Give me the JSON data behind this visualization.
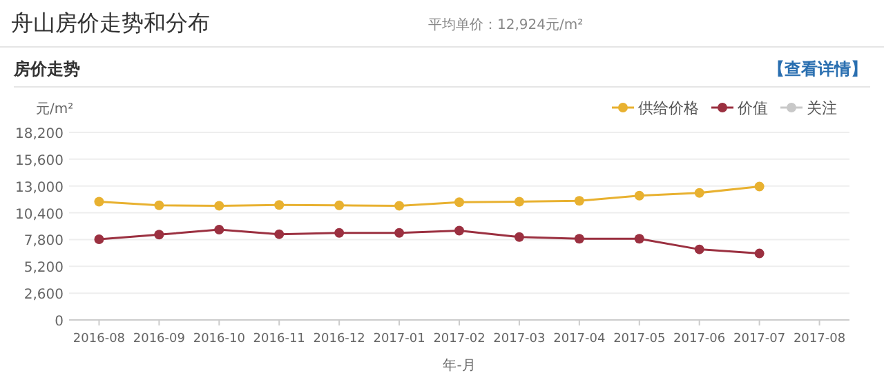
{
  "chart_data": {
    "type": "line",
    "title": "舟山房价走势和分布",
    "subtitle": "平均单价：12,924元/m²",
    "annotations": [
      "房价走势",
      "【查看详情】"
    ],
    "ylabel": "元/m²",
    "xlabel": "年-月",
    "categories": [
      "2016-08",
      "2016-09",
      "2016-10",
      "2016-11",
      "2016-12",
      "2017-01",
      "2017-02",
      "2017-03",
      "2017-04",
      "2017-05",
      "2017-06",
      "2017-07",
      "2017-08"
    ],
    "series": [
      {
        "name": "供给价格",
        "color": "#e8b130",
        "values": [
          11480,
          11120,
          11080,
          11160,
          11120,
          11080,
          11430,
          11480,
          11560,
          12060,
          12330,
          12950,
          null
        ]
      },
      {
        "name": "价值",
        "color": "#9b3040",
        "values": [
          7830,
          8280,
          8760,
          8320,
          8450,
          8450,
          8670,
          8050,
          7880,
          7880,
          6850,
          6450,
          null
        ]
      },
      {
        "name": "关注",
        "color": "#c8c8c8",
        "values": [
          null,
          null,
          null,
          null,
          null,
          null,
          null,
          null,
          null,
          null,
          null,
          null,
          null
        ]
      }
    ],
    "ylim": [
      0,
      18200
    ],
    "yticks": [
      {
        "value": 0,
        "label": "0"
      },
      {
        "value": 2600,
        "label": "2,600"
      },
      {
        "value": 5200,
        "label": "5,200"
      },
      {
        "value": 7800,
        "label": "7,800"
      },
      {
        "value": 10400,
        "label": "10,400"
      },
      {
        "value": 13000,
        "label": "13,000"
      },
      {
        "value": 15600,
        "label": "15,600"
      },
      {
        "value": 18200,
        "label": "18,200"
      }
    ],
    "grid": "y",
    "legend": "top right",
    "marker": "circle",
    "line_style": "solid"
  }
}
